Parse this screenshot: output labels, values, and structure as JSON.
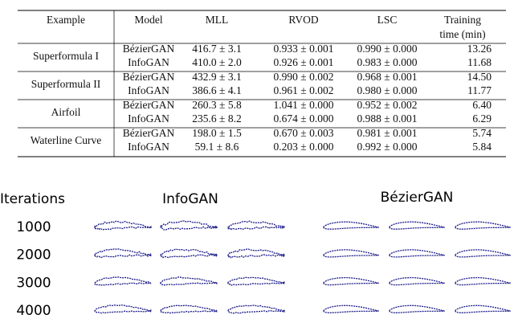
{
  "table": {
    "header": [
      "Example",
      "Model",
      "MLL",
      "RVOD",
      "LSC",
      [
        "Training",
        "time (min)"
      ]
    ],
    "groups": [
      {
        "example": "Superformula I",
        "rows": [
          [
            "BézierGAN",
            "416.7 ± 3.1",
            "0.933 ± 0.001",
            "0.990 ± 0.000",
            "13.26"
          ],
          [
            "InfoGAN",
            "410.0 ± 2.0",
            "0.926 ± 0.001",
            "0.983 ± 0.000",
            "11.68"
          ]
        ]
      },
      {
        "example": "Superformula II",
        "rows": [
          [
            "BézierGAN",
            "432.9 ± 3.1",
            "0.990 ± 0.002",
            "0.968 ± 0.001",
            "14.50"
          ],
          [
            "InfoGAN",
            "386.6 ± 4.1",
            "0.961 ± 0.002",
            "0.980 ± 0.000",
            "11.77"
          ]
        ]
      },
      {
        "example": "Airfoil",
        "rows": [
          [
            "BézierGAN",
            "260.3 ± 5.8",
            "1.041 ± 0.000",
            "0.952 ± 0.002",
            "6.40"
          ],
          [
            "InfoGAN",
            "235.6 ± 8.2",
            "0.674 ± 0.000",
            "0.988 ± 0.001",
            "6.29"
          ]
        ]
      },
      {
        "example": "Waterline Curve",
        "rows": [
          [
            "BézierGAN",
            "198.0 ± 1.5",
            "0.670 ± 0.003",
            "0.981 ± 0.001",
            "5.74"
          ],
          [
            "InfoGAN",
            "59.1 ± 8.6",
            "0.203 ± 0.000",
            "0.992 ± 0.000",
            "5.84"
          ]
        ]
      }
    ]
  },
  "figure": {
    "row_header": "Iterations",
    "columns": [
      "InfoGAN",
      "BézierGAN"
    ],
    "iterations": [
      1000,
      2000,
      3000,
      4000
    ]
  }
}
